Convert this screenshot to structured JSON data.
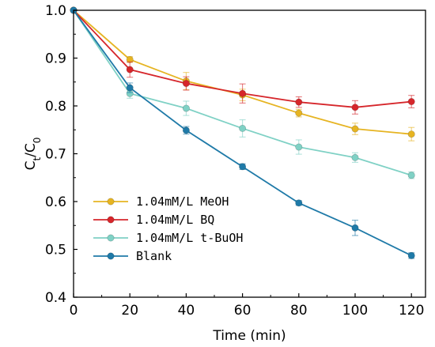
{
  "chart_data": {
    "type": "line",
    "xlabel": "Time (min)",
    "ylabel": {
      "main": "C",
      "sub1": "t",
      "mid": "/C",
      "sub2": "0"
    },
    "xlim": [
      0,
      125
    ],
    "ylim": [
      0.4,
      1.0
    ],
    "x_ticks": [
      0,
      20,
      40,
      60,
      80,
      100,
      120
    ],
    "y_ticks": [
      0.4,
      0.5,
      0.6,
      0.7,
      0.8,
      0.9,
      1.0
    ],
    "y_tick_labels": [
      "0.4",
      "0.5",
      "0.6",
      "0.7",
      "0.8",
      "0.9",
      "1.0"
    ],
    "x": [
      0,
      20,
      40,
      60,
      80,
      100,
      120
    ],
    "legend_position": "bottom-left",
    "grid": false,
    "series": [
      {
        "name": "1.04mM/L MeOH",
        "color": "#e6b422",
        "values": [
          1.0,
          0.897,
          0.852,
          0.823,
          0.785,
          0.752,
          0.741
        ],
        "errors": [
          0,
          0.006,
          0.018,
          0.012,
          0.008,
          0.012,
          0.014
        ]
      },
      {
        "name": "1.04mM/L BQ",
        "color": "#d6262b",
        "values": [
          1.0,
          0.876,
          0.847,
          0.826,
          0.808,
          0.797,
          0.809
        ],
        "errors": [
          0,
          0.016,
          0.014,
          0.02,
          0.011,
          0.014,
          0.013
        ]
      },
      {
        "name": "1.04mM/L t-BuOH",
        "color": "#7fd1c5",
        "values": [
          1.0,
          0.826,
          0.795,
          0.753,
          0.714,
          0.692,
          0.655
        ],
        "errors": [
          0,
          0.01,
          0.015,
          0.018,
          0.015,
          0.01,
          0.007
        ]
      },
      {
        "name": "Blank",
        "color": "#1f7aa8",
        "values": [
          1.0,
          0.838,
          0.749,
          0.673,
          0.597,
          0.545,
          0.487
        ],
        "errors": [
          0,
          0.01,
          0.008,
          0.006,
          0.005,
          0.016,
          0.006
        ]
      }
    ]
  }
}
